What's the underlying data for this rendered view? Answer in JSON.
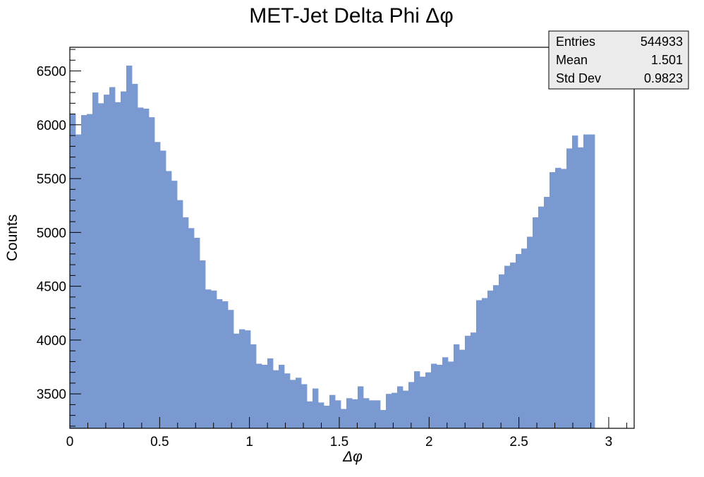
{
  "chart_data": {
    "type": "bar",
    "title": "MET-Jet Delta Phi Δφ",
    "xlabel": "Δφ",
    "ylabel": "Counts",
    "xlim": [
      0,
      3.1416
    ],
    "ylim": [
      3180,
      6720
    ],
    "x_ticks": [
      0,
      0.5,
      1,
      1.5,
      2,
      2.5,
      3
    ],
    "x_tick_labels": [
      "0",
      "0.5",
      "1",
      "1.5",
      "2",
      "2.5",
      "3"
    ],
    "y_ticks": [
      3500,
      4000,
      4500,
      5000,
      5500,
      6000,
      6500
    ],
    "y_tick_labels": [
      "3500",
      "4000",
      "4500",
      "5000",
      "5500",
      "6000",
      "6500"
    ],
    "bin_width": 0.0314159,
    "fill_color": "#7a99d0",
    "values": [
      6100,
      5910,
      6090,
      6100,
      6300,
      6200,
      6280,
      6350,
      6210,
      6310,
      6550,
      6380,
      6160,
      6150,
      6070,
      5840,
      5760,
      5570,
      5480,
      5300,
      5140,
      5040,
      4950,
      4740,
      4470,
      4460,
      4380,
      4360,
      4280,
      4060,
      4100,
      4090,
      3960,
      3780,
      3770,
      3830,
      3720,
      3770,
      3690,
      3630,
      3650,
      3590,
      3430,
      3550,
      3420,
      3390,
      3490,
      3440,
      3360,
      3460,
      3450,
      3570,
      3460,
      3440,
      3440,
      3350,
      3500,
      3510,
      3570,
      3530,
      3610,
      3710,
      3660,
      3700,
      3780,
      3770,
      3840,
      3800,
      3960,
      3910,
      4040,
      4070,
      4370,
      4390,
      4460,
      4510,
      4610,
      4690,
      4720,
      4800,
      4850,
      4960,
      5140,
      5240,
      5330,
      5560,
      5600,
      5590,
      5780,
      5900,
      5790,
      5910,
      5910
    ],
    "stats": [
      {
        "label": "Entries",
        "value": "544933"
      },
      {
        "label": "Mean",
        "value": "1.501"
      },
      {
        "label": "Std Dev",
        "value": "0.9823"
      }
    ]
  }
}
